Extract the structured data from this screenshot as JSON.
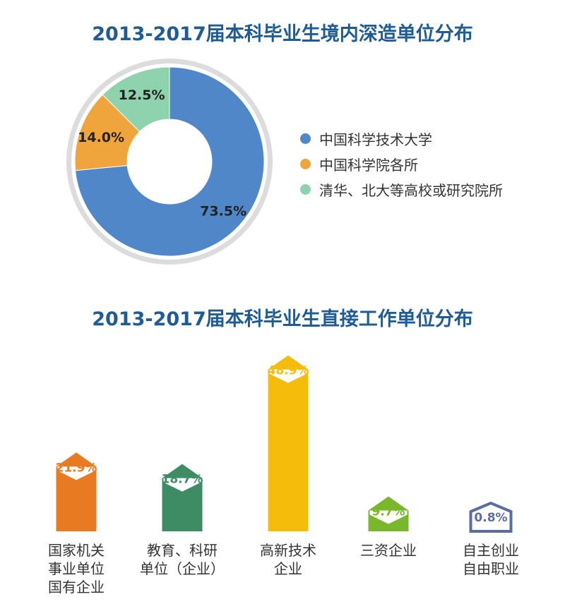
{
  "chart_data": [
    {
      "type": "pie",
      "title": "2013-2017届本科毕业生境内深造单位分布",
      "labels": [
        "中国科学技术大学",
        "中国科学院各所",
        "清华、北大等高校或研究院所"
      ],
      "values": [
        73.5,
        14.0,
        12.5
      ],
      "value_labels": [
        "73.5%",
        "14.0%",
        "12.5%"
      ],
      "colors": [
        "#4f87c9",
        "#f0a43c",
        "#8fd2ae"
      ],
      "legend": "right"
    },
    {
      "type": "bar",
      "title": "2013-2017届本科毕业生直接工作单位分布",
      "categories": [
        "国家机关\n事业单位\n国有企业",
        "教育、科研\n单位（企业）",
        "高新技术\n企业",
        "三资企业",
        "自主创业\n自由职业"
      ],
      "values": [
        21.9,
        18.7,
        48.9,
        9.7,
        0.8
      ],
      "value_labels": [
        "21.9%",
        "18.7%",
        "48.9%",
        "9.7%",
        "0.8%"
      ],
      "colors": [
        "#e87a22",
        "#3d8c64",
        "#f5bc0c",
        "#79b82c",
        "#5a6da3"
      ]
    }
  ]
}
